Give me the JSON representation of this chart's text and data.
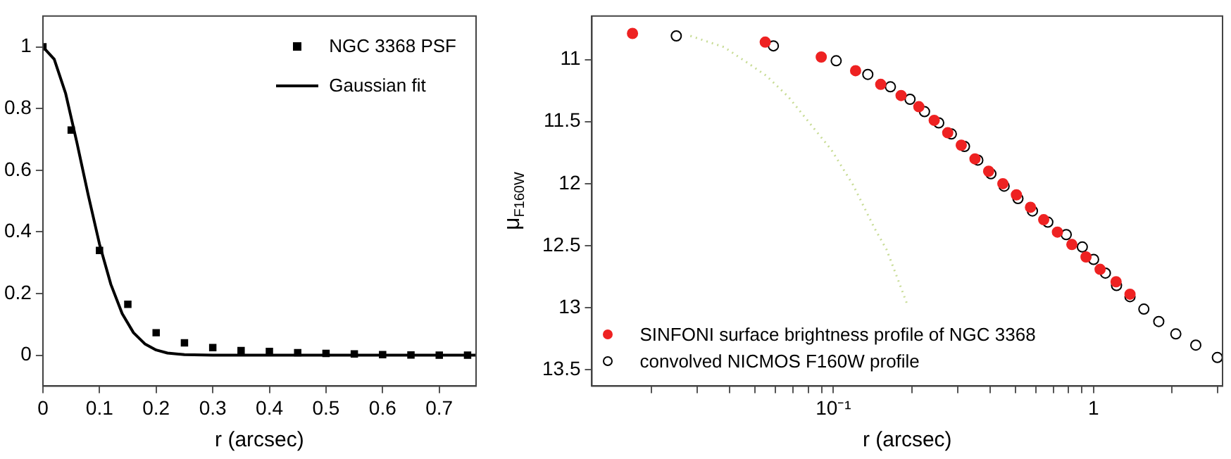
{
  "chart_data": [
    {
      "type": "scatter",
      "xlabel": "r (arcsec)",
      "xlim": [
        0,
        0.765
      ],
      "ylim": [
        -0.1,
        1.1
      ],
      "xticks": [
        0,
        0.1,
        0.2,
        0.3,
        0.4,
        0.5,
        0.6,
        0.7
      ],
      "yticks": [
        0,
        0.2,
        0.4,
        0.6,
        0.8,
        1
      ],
      "grid": false,
      "legend": "top right",
      "series": [
        {
          "name": "NGC 3368 PSF",
          "type": "scatter",
          "marker": "square",
          "color": "#000000",
          "x": [
            0,
            0.05,
            0.1,
            0.15,
            0.2,
            0.25,
            0.3,
            0.35,
            0.4,
            0.45,
            0.5,
            0.55,
            0.6,
            0.65,
            0.7,
            0.75
          ],
          "values": [
            1,
            0.73,
            0.34,
            0.165,
            0.073,
            0.04,
            0.025,
            0.015,
            0.012,
            0.008,
            0.006,
            0.004,
            0.002,
            0.001,
            0,
            0
          ]
        },
        {
          "name": "Gaussian fit",
          "type": "line",
          "marker": "none",
          "line_style": "solid",
          "color": "#000000",
          "x": [
            0,
            0.02,
            0.04,
            0.06,
            0.08,
            0.1,
            0.12,
            0.14,
            0.16,
            0.18,
            0.2,
            0.22,
            0.25,
            0.3,
            0.4,
            0.5,
            0.6,
            0.7,
            0.765
          ],
          "values": [
            1,
            0.96,
            0.85,
            0.69,
            0.52,
            0.36,
            0.23,
            0.135,
            0.073,
            0.037,
            0.017,
            0.007,
            0.002,
            0,
            0,
            0,
            0,
            0,
            0
          ]
        }
      ]
    },
    {
      "type": "scatter",
      "xlabel": "r (arcsec)",
      "ylabel": "μ$_{F160W}$",
      "log": "x",
      "xlim": [
        0.0118,
        3.13
      ],
      "ylim": [
        13.63,
        10.65
      ],
      "xticks": [
        {
          "value": 0.02,
          "label": null
        },
        {
          "value": 0.03,
          "label": null
        },
        {
          "value": 0.04,
          "label": null
        },
        {
          "value": 0.05,
          "label": null
        },
        {
          "value": 0.06,
          "label": null
        },
        {
          "value": 0.07,
          "label": null
        },
        {
          "value": 0.08,
          "label": null
        },
        {
          "value": 0.09,
          "label": null
        },
        {
          "value": 0.1,
          "label": "10⁻¹"
        },
        {
          "value": 0.2,
          "label": null
        },
        {
          "value": 0.3,
          "label": null
        },
        {
          "value": 0.4,
          "label": null
        },
        {
          "value": 0.5,
          "label": null
        },
        {
          "value": 0.6,
          "label": null
        },
        {
          "value": 0.7,
          "label": null
        },
        {
          "value": 0.8,
          "label": null
        },
        {
          "value": 0.9,
          "label": null
        },
        1,
        {
          "value": 2,
          "label": null
        },
        {
          "value": 3,
          "label": null
        }
      ],
      "yticks": [
        11,
        11.5,
        12,
        12.5,
        13,
        13.5
      ],
      "grid": false,
      "legend": "bottom left",
      "series": [
        {
          "type": "line",
          "marker": "none",
          "line_style": "dotted",
          "color": "#c8dc96",
          "x": [
            0.0282,
            0.038,
            0.0455,
            0.0552,
            0.0671,
            0.0809,
            0.0984,
            0.119,
            0.144,
            0.16,
            0.174,
            0.192
          ],
          "values": [
            10.81,
            10.9,
            11.01,
            11.13,
            11.3,
            11.51,
            11.73,
            12.01,
            12.36,
            12.53,
            12.73,
            12.97
          ]
        },
        {
          "name": "SINFONI surface brightness profile of NGC 3368",
          "type": "scatter",
          "marker": "circle",
          "color": "#ee2222",
          "x": [
            0.0169,
            0.0547,
            0.0898,
            0.1217,
            0.152,
            0.182,
            0.213,
            0.244,
            0.275,
            0.31,
            0.35,
            0.395,
            0.448,
            0.505,
            0.572,
            0.643,
            0.726,
            0.825,
            0.935,
            1.059,
            1.22,
            1.38
          ],
          "values": [
            10.79,
            10.86,
            10.98,
            11.09,
            11.2,
            11.29,
            11.38,
            11.49,
            11.59,
            11.69,
            11.8,
            11.9,
            12.0,
            12.09,
            12.19,
            12.29,
            12.39,
            12.49,
            12.59,
            12.69,
            12.79,
            12.89
          ]
        },
        {
          "name": "convolved NICMOS F160W profile",
          "type": "scatter",
          "marker": "circle",
          "color": "#000000",
          "x": [
            0.0249,
            0.0588,
            0.1025,
            0.1356,
            0.1656,
            0.197,
            0.224,
            0.254,
            0.284,
            0.319,
            0.359,
            0.403,
            0.453,
            0.512,
            0.582,
            0.667,
            0.785,
            0.905,
            1.0,
            1.11,
            1.225,
            1.38,
            1.56,
            1.78,
            2.07,
            2.47,
            2.99
          ],
          "values": [
            10.81,
            10.89,
            11.01,
            11.12,
            11.22,
            11.32,
            11.42,
            11.51,
            11.6,
            11.7,
            11.81,
            11.92,
            12.02,
            12.12,
            12.22,
            12.31,
            12.41,
            12.51,
            12.61,
            12.72,
            12.82,
            12.91,
            13.01,
            13.11,
            13.21,
            13.3,
            13.4
          ]
        }
      ]
    }
  ]
}
